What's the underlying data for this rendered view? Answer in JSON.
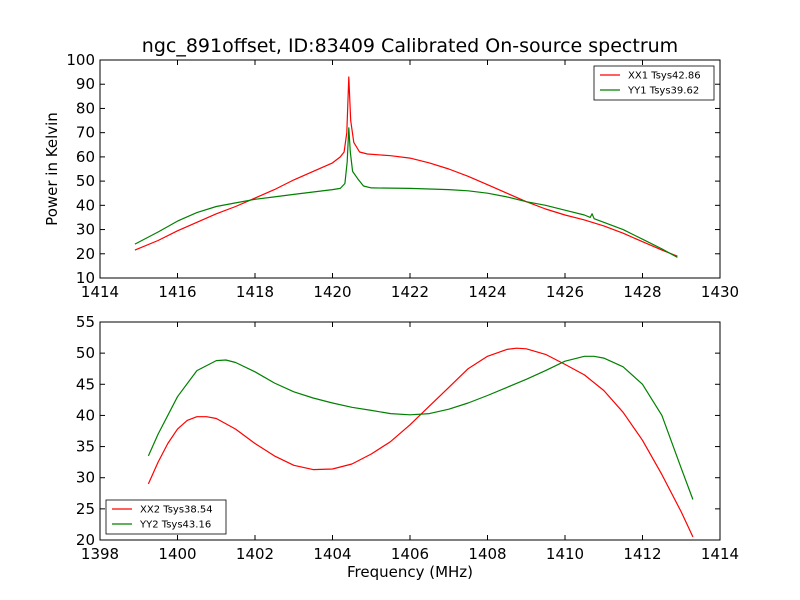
{
  "title": "ngc_891offset, ID:83409 Calibrated On-source spectrum",
  "chart_data": [
    {
      "type": "line",
      "xlim": [
        1414,
        1430
      ],
      "ylim": [
        10,
        100
      ],
      "xticks": [
        "1414",
        "1416",
        "1418",
        "1420",
        "1422",
        "1424",
        "1426",
        "1428",
        "1430"
      ],
      "yticks": [
        "10",
        "20",
        "30",
        "40",
        "50",
        "60",
        "70",
        "80",
        "90",
        "100"
      ],
      "xlabel": "",
      "ylabel": "Power in Kelvin",
      "legend_position": "top-right",
      "grid": false,
      "series": [
        {
          "name": "XX1 Tsys42.86",
          "color": "#ff0000",
          "points": [
            [
              1414.9,
              21.5
            ],
            [
              1415.5,
              25.5
            ],
            [
              1416.0,
              29.5
            ],
            [
              1416.5,
              33.0
            ],
            [
              1417.0,
              36.5
            ],
            [
              1417.5,
              39.5
            ],
            [
              1418.0,
              43.0
            ],
            [
              1418.5,
              46.5
            ],
            [
              1419.0,
              50.5
            ],
            [
              1419.5,
              54.0
            ],
            [
              1420.0,
              57.5
            ],
            [
              1420.2,
              60.0
            ],
            [
              1420.3,
              62.0
            ],
            [
              1420.37,
              70.0
            ],
            [
              1420.42,
              93.0
            ],
            [
              1420.47,
              75.0
            ],
            [
              1420.55,
              66.0
            ],
            [
              1420.7,
              62.0
            ],
            [
              1420.9,
              61.2
            ],
            [
              1421.5,
              60.5
            ],
            [
              1422.0,
              59.5
            ],
            [
              1422.5,
              57.5
            ],
            [
              1423.0,
              55.0
            ],
            [
              1423.5,
              52.0
            ],
            [
              1424.0,
              48.5
            ],
            [
              1424.5,
              45.0
            ],
            [
              1425.0,
              41.5
            ],
            [
              1425.5,
              38.5
            ],
            [
              1426.0,
              36.0
            ],
            [
              1426.5,
              34.0
            ],
            [
              1427.0,
              31.5
            ],
            [
              1427.5,
              28.5
            ],
            [
              1428.0,
              25.0
            ],
            [
              1428.5,
              21.5
            ],
            [
              1428.9,
              19.0
            ]
          ]
        },
        {
          "name": "YY1 Tsys39.62",
          "color": "#008000",
          "points": [
            [
              1414.9,
              24.0
            ],
            [
              1415.5,
              29.0
            ],
            [
              1416.0,
              33.5
            ],
            [
              1416.5,
              37.0
            ],
            [
              1417.0,
              39.5
            ],
            [
              1417.5,
              41.0
            ],
            [
              1418.0,
              42.5
            ],
            [
              1418.5,
              43.5
            ],
            [
              1419.0,
              44.5
            ],
            [
              1419.5,
              45.5
            ],
            [
              1420.0,
              46.5
            ],
            [
              1420.2,
              47.0
            ],
            [
              1420.32,
              49.0
            ],
            [
              1420.38,
              58.0
            ],
            [
              1420.42,
              72.0
            ],
            [
              1420.46,
              62.0
            ],
            [
              1420.52,
              54.0
            ],
            [
              1420.65,
              51.0
            ],
            [
              1420.8,
              48.0
            ],
            [
              1421.0,
              47.2
            ],
            [
              1422.0,
              47.0
            ],
            [
              1423.0,
              46.5
            ],
            [
              1423.5,
              46.0
            ],
            [
              1424.0,
              45.0
            ],
            [
              1424.5,
              43.5
            ],
            [
              1425.0,
              41.5
            ],
            [
              1425.5,
              40.0
            ],
            [
              1426.0,
              38.0
            ],
            [
              1426.5,
              36.0
            ],
            [
              1426.65,
              35.0
            ],
            [
              1426.7,
              36.5
            ],
            [
              1426.75,
              34.5
            ],
            [
              1427.0,
              33.0
            ],
            [
              1427.5,
              30.0
            ],
            [
              1428.0,
              26.0
            ],
            [
              1428.5,
              22.0
            ],
            [
              1428.9,
              18.5
            ]
          ]
        }
      ]
    },
    {
      "type": "line",
      "xlim": [
        1398,
        1414
      ],
      "ylim": [
        20,
        55
      ],
      "xticks": [
        "1398",
        "1400",
        "1402",
        "1404",
        "1406",
        "1408",
        "1410",
        "1412",
        "1414"
      ],
      "yticks": [
        "20",
        "25",
        "30",
        "35",
        "40",
        "45",
        "50",
        "55"
      ],
      "xlabel": "Frequency (MHz)",
      "ylabel": "",
      "legend_position": "bottom-left",
      "grid": false,
      "series": [
        {
          "name": "XX2 Tsys38.54",
          "color": "#ff0000",
          "points": [
            [
              1399.25,
              29.0
            ],
            [
              1399.5,
              32.5
            ],
            [
              1399.75,
              35.5
            ],
            [
              1400.0,
              37.8
            ],
            [
              1400.25,
              39.2
            ],
            [
              1400.5,
              39.8
            ],
            [
              1400.75,
              39.8
            ],
            [
              1401.0,
              39.5
            ],
            [
              1401.5,
              37.8
            ],
            [
              1402.0,
              35.5
            ],
            [
              1402.5,
              33.5
            ],
            [
              1403.0,
              32.0
            ],
            [
              1403.5,
              31.3
            ],
            [
              1404.0,
              31.4
            ],
            [
              1404.5,
              32.2
            ],
            [
              1405.0,
              33.8
            ],
            [
              1405.5,
              35.8
            ],
            [
              1406.0,
              38.5
            ],
            [
              1406.5,
              41.5
            ],
            [
              1407.0,
              44.5
            ],
            [
              1407.5,
              47.5
            ],
            [
              1408.0,
              49.5
            ],
            [
              1408.5,
              50.6
            ],
            [
              1408.75,
              50.8
            ],
            [
              1409.0,
              50.7
            ],
            [
              1409.5,
              49.8
            ],
            [
              1410.0,
              48.2
            ],
            [
              1410.5,
              46.5
            ],
            [
              1411.0,
              44.0
            ],
            [
              1411.5,
              40.5
            ],
            [
              1412.0,
              36.0
            ],
            [
              1412.5,
              30.5
            ],
            [
              1413.0,
              24.5
            ],
            [
              1413.3,
              20.5
            ]
          ]
        },
        {
          "name": "YY2 Tsys43.16",
          "color": "#008000",
          "points": [
            [
              1399.25,
              33.5
            ],
            [
              1399.5,
              37.0
            ],
            [
              1400.0,
              43.0
            ],
            [
              1400.5,
              47.2
            ],
            [
              1401.0,
              48.8
            ],
            [
              1401.25,
              48.9
            ],
            [
              1401.5,
              48.5
            ],
            [
              1402.0,
              47.0
            ],
            [
              1402.5,
              45.2
            ],
            [
              1403.0,
              43.8
            ],
            [
              1403.5,
              42.8
            ],
            [
              1404.0,
              42.0
            ],
            [
              1404.5,
              41.3
            ],
            [
              1405.0,
              40.8
            ],
            [
              1405.5,
              40.3
            ],
            [
              1406.0,
              40.1
            ],
            [
              1406.5,
              40.3
            ],
            [
              1407.0,
              41.0
            ],
            [
              1407.5,
              42.0
            ],
            [
              1408.0,
              43.2
            ],
            [
              1408.5,
              44.5
            ],
            [
              1409.0,
              45.8
            ],
            [
              1409.5,
              47.2
            ],
            [
              1410.0,
              48.7
            ],
            [
              1410.5,
              49.5
            ],
            [
              1410.75,
              49.5
            ],
            [
              1411.0,
              49.2
            ],
            [
              1411.5,
              47.8
            ],
            [
              1412.0,
              45.0
            ],
            [
              1412.5,
              40.0
            ],
            [
              1413.0,
              31.5
            ],
            [
              1413.3,
              26.5
            ]
          ]
        }
      ]
    }
  ]
}
